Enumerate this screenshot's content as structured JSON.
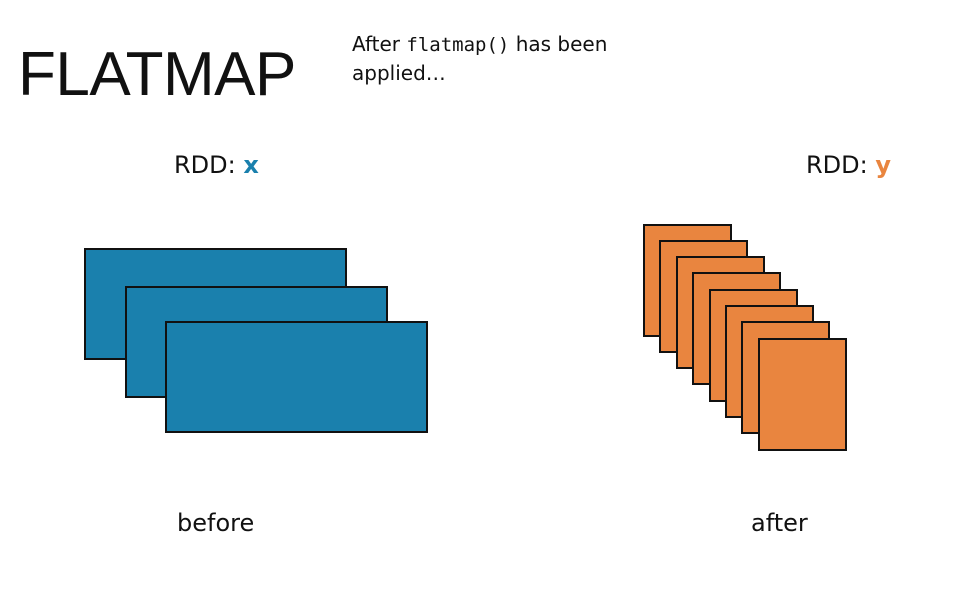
{
  "title": "FLATMAP",
  "caption": {
    "prefix": "After ",
    "code": "flatmap()",
    "suffix": " has been applied…"
  },
  "left": {
    "rdd_prefix": "RDD: ",
    "rdd_name": "x",
    "color": "#1a80ad",
    "partition_count": 3,
    "label": "before"
  },
  "right": {
    "rdd_prefix": "RDD: ",
    "rdd_name": "y",
    "color": "#e9853f",
    "partition_count": 8,
    "label": "after"
  }
}
